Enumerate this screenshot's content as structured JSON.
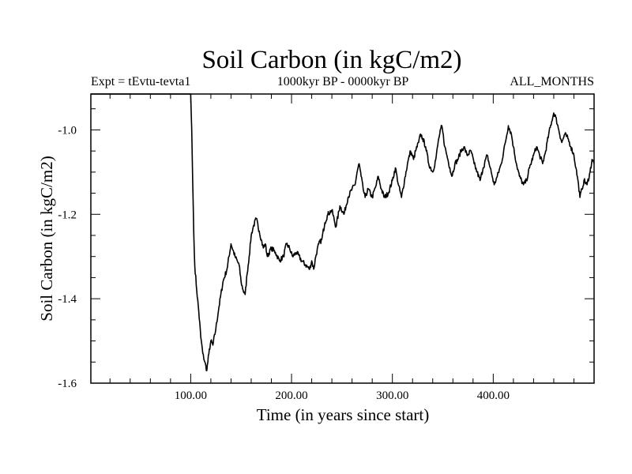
{
  "chart_data": {
    "type": "line",
    "title": "Soil Carbon (in kgC/m2)",
    "subtitle_left": "Expt = tEvtu-tevta1",
    "subtitle_center": "1000kyr BP - 0000kyr BP",
    "subtitle_right": "ALL_MONTHS",
    "xlabel": "Time (in years since start)",
    "ylabel": "Soil Carbon (in kgC/m2)",
    "xlim": [
      1,
      500
    ],
    "ylim": [
      -1.6,
      -0.915
    ],
    "x_ticks": [
      {
        "value": 100,
        "label": "100.00"
      },
      {
        "value": 200,
        "label": "200.00"
      },
      {
        "value": 300,
        "label": "300.00"
      },
      {
        "value": 400,
        "label": "400.00"
      }
    ],
    "y_ticks": [
      {
        "value": -1.6,
        "label": "-1.6"
      },
      {
        "value": -1.4,
        "label": "-1.4"
      },
      {
        "value": -1.2,
        "label": "-1.2"
      },
      {
        "value": -1.0,
        "label": "-1.0"
      }
    ],
    "series": [
      {
        "name": "Soil Carbon",
        "color": "#000000",
        "x": [
          1,
          99,
          100,
          101,
          102,
          103,
          104,
          106,
          108,
          110,
          112,
          114,
          116,
          118,
          120,
          122,
          125,
          128,
          132,
          136,
          140,
          144,
          148,
          150,
          152,
          154,
          156,
          158,
          160,
          162,
          165,
          168,
          170,
          172,
          174,
          176,
          180,
          184,
          188,
          192,
          195,
          198,
          201,
          205,
          210,
          214,
          218,
          220,
          222,
          224,
          227,
          230,
          233,
          236,
          240,
          244,
          248,
          252,
          256,
          260,
          263,
          265,
          267,
          269,
          271,
          273,
          276,
          280,
          284,
          286,
          289,
          292,
          296,
          300,
          303,
          306,
          309,
          312,
          315,
          318,
          321,
          323,
          326,
          328,
          330,
          333,
          336,
          340,
          343,
          346,
          349,
          352,
          355,
          357,
          359,
          362,
          365,
          368,
          371,
          374,
          378,
          381,
          384,
          387,
          390,
          394,
          398,
          401,
          404,
          408,
          412,
          415,
          418,
          420,
          423,
          426,
          430,
          433,
          436,
          440,
          443,
          446,
          449,
          452,
          455,
          458,
          460,
          462,
          465,
          468,
          471,
          474,
          477,
          480,
          482,
          484,
          486,
          488,
          490,
          493,
          496,
          498,
          500
        ],
        "values": [
          -0.915,
          -0.915,
          -0.915,
          -1.0,
          -1.12,
          -1.24,
          -1.32,
          -1.38,
          -1.43,
          -1.49,
          -1.53,
          -1.55,
          -1.57,
          -1.53,
          -1.5,
          -1.51,
          -1.47,
          -1.42,
          -1.36,
          -1.33,
          -1.27,
          -1.3,
          -1.32,
          -1.36,
          -1.38,
          -1.39,
          -1.34,
          -1.3,
          -1.25,
          -1.23,
          -1.21,
          -1.24,
          -1.26,
          -1.28,
          -1.27,
          -1.3,
          -1.28,
          -1.29,
          -1.31,
          -1.3,
          -1.27,
          -1.28,
          -1.3,
          -1.29,
          -1.31,
          -1.32,
          -1.33,
          -1.31,
          -1.33,
          -1.3,
          -1.27,
          -1.26,
          -1.22,
          -1.2,
          -1.19,
          -1.23,
          -1.18,
          -1.2,
          -1.16,
          -1.14,
          -1.13,
          -1.1,
          -1.08,
          -1.11,
          -1.14,
          -1.16,
          -1.14,
          -1.16,
          -1.13,
          -1.11,
          -1.14,
          -1.16,
          -1.15,
          -1.12,
          -1.09,
          -1.13,
          -1.16,
          -1.12,
          -1.08,
          -1.05,
          -1.07,
          -1.05,
          -1.03,
          -1.01,
          -1.02,
          -1.04,
          -1.08,
          -1.1,
          -1.07,
          -1.02,
          -0.99,
          -1.04,
          -1.07,
          -1.09,
          -1.11,
          -1.08,
          -1.07,
          -1.05,
          -1.04,
          -1.06,
          -1.05,
          -1.08,
          -1.1,
          -1.12,
          -1.09,
          -1.06,
          -1.1,
          -1.13,
          -1.11,
          -1.08,
          -1.03,
          -0.99,
          -1.01,
          -1.04,
          -1.08,
          -1.11,
          -1.13,
          -1.12,
          -1.09,
          -1.06,
          -1.04,
          -1.06,
          -1.08,
          -1.05,
          -1.01,
          -0.98,
          -0.96,
          -0.97,
          -1.0,
          -1.03,
          -1.01,
          -1.02,
          -1.04,
          -1.06,
          -1.09,
          -1.12,
          -1.16,
          -1.14,
          -1.12,
          -1.13,
          -1.1,
          -1.07,
          -1.08
        ]
      }
    ]
  }
}
